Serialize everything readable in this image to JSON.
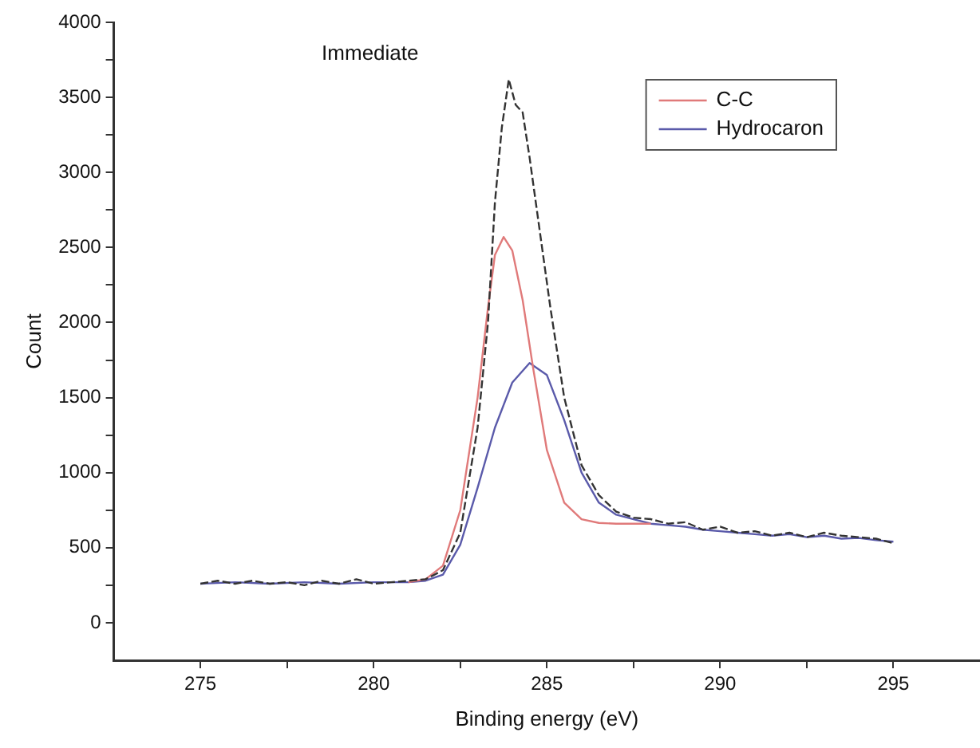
{
  "chart_data": {
    "type": "line",
    "xlabel": "Binding energy (eV)",
    "ylabel": "Count",
    "annotations": [
      "Immediate"
    ],
    "xlim": [
      272.5,
      297.5
    ],
    "xticks": [
      275,
      {
        "value": 277.5,
        "label": null
      },
      280,
      {
        "value": 282.5,
        "label": null
      },
      285,
      {
        "value": 287.5,
        "label": null
      },
      290,
      {
        "value": 292.5,
        "label": null
      },
      295
    ],
    "ylim": [
      -250,
      4000
    ],
    "yticks": [
      0,
      {
        "value": 250,
        "label": null
      },
      500,
      {
        "value": 750,
        "label": null
      },
      1000,
      {
        "value": 1250,
        "label": null
      },
      1500,
      {
        "value": 1750,
        "label": null
      },
      2000,
      {
        "value": 2250,
        "label": null
      },
      2500,
      {
        "value": 2750,
        "label": null
      },
      3000,
      {
        "value": 3250,
        "label": null
      },
      3500,
      {
        "value": 3750,
        "label": null
      },
      4000
    ],
    "legend": "top right",
    "marker": "none",
    "series": [
      {
        "color": "#333333",
        "line_style": "dashed",
        "x": [
          275,
          275.5,
          276,
          276.5,
          277,
          277.5,
          278,
          278.5,
          279,
          279.5,
          280,
          280.5,
          281,
          281.5,
          282,
          282.5,
          283,
          283.3,
          283.5,
          283.7,
          283.9,
          284.1,
          284.3,
          284.5,
          284.8,
          285.1,
          285.5,
          286,
          286.5,
          287,
          287.5,
          288,
          288.5,
          289,
          289.5,
          290,
          290.5,
          291,
          291.5,
          292,
          292.5,
          293,
          293.5,
          294,
          294.5,
          295
        ],
        "values": [
          260,
          280,
          260,
          280,
          260,
          270,
          250,
          280,
          260,
          290,
          260,
          270,
          280,
          290,
          350,
          600,
          1300,
          2000,
          2800,
          3300,
          3620,
          3450,
          3400,
          3100,
          2600,
          2100,
          1500,
          1050,
          850,
          740,
          700,
          690,
          660,
          670,
          620,
          640,
          600,
          610,
          580,
          600,
          570,
          600,
          580,
          570,
          560,
          530
        ]
      },
      {
        "name": "C-C",
        "color": "#e07a7a",
        "line_style": "solid",
        "x": [
          281,
          281.5,
          282,
          282.5,
          283,
          283.3,
          283.5,
          283.75,
          284,
          284.3,
          284.6,
          285,
          285.5,
          286,
          286.5,
          287,
          288
        ],
        "values": [
          270,
          290,
          380,
          750,
          1500,
          2100,
          2450,
          2570,
          2480,
          2150,
          1700,
          1150,
          800,
          690,
          665,
          660,
          660
        ]
      },
      {
        "name": "Hydrocaron",
        "color": "#5a5aaa",
        "line_style": "solid",
        "x": [
          275,
          276,
          277,
          278,
          279,
          280,
          281,
          281.5,
          282,
          282.5,
          283,
          283.5,
          284,
          284.5,
          285,
          285.5,
          286,
          286.5,
          287,
          287.5,
          288,
          288.5,
          289,
          289.5,
          290,
          290.5,
          291,
          291.5,
          292,
          292.5,
          293,
          293.5,
          294,
          294.5,
          295
        ],
        "values": [
          260,
          270,
          260,
          270,
          260,
          270,
          270,
          280,
          320,
          520,
          900,
          1300,
          1600,
          1730,
          1650,
          1350,
          1000,
          800,
          720,
          690,
          660,
          650,
          640,
          620,
          610,
          600,
          590,
          580,
          590,
          570,
          580,
          560,
          565,
          550,
          540
        ]
      }
    ]
  }
}
